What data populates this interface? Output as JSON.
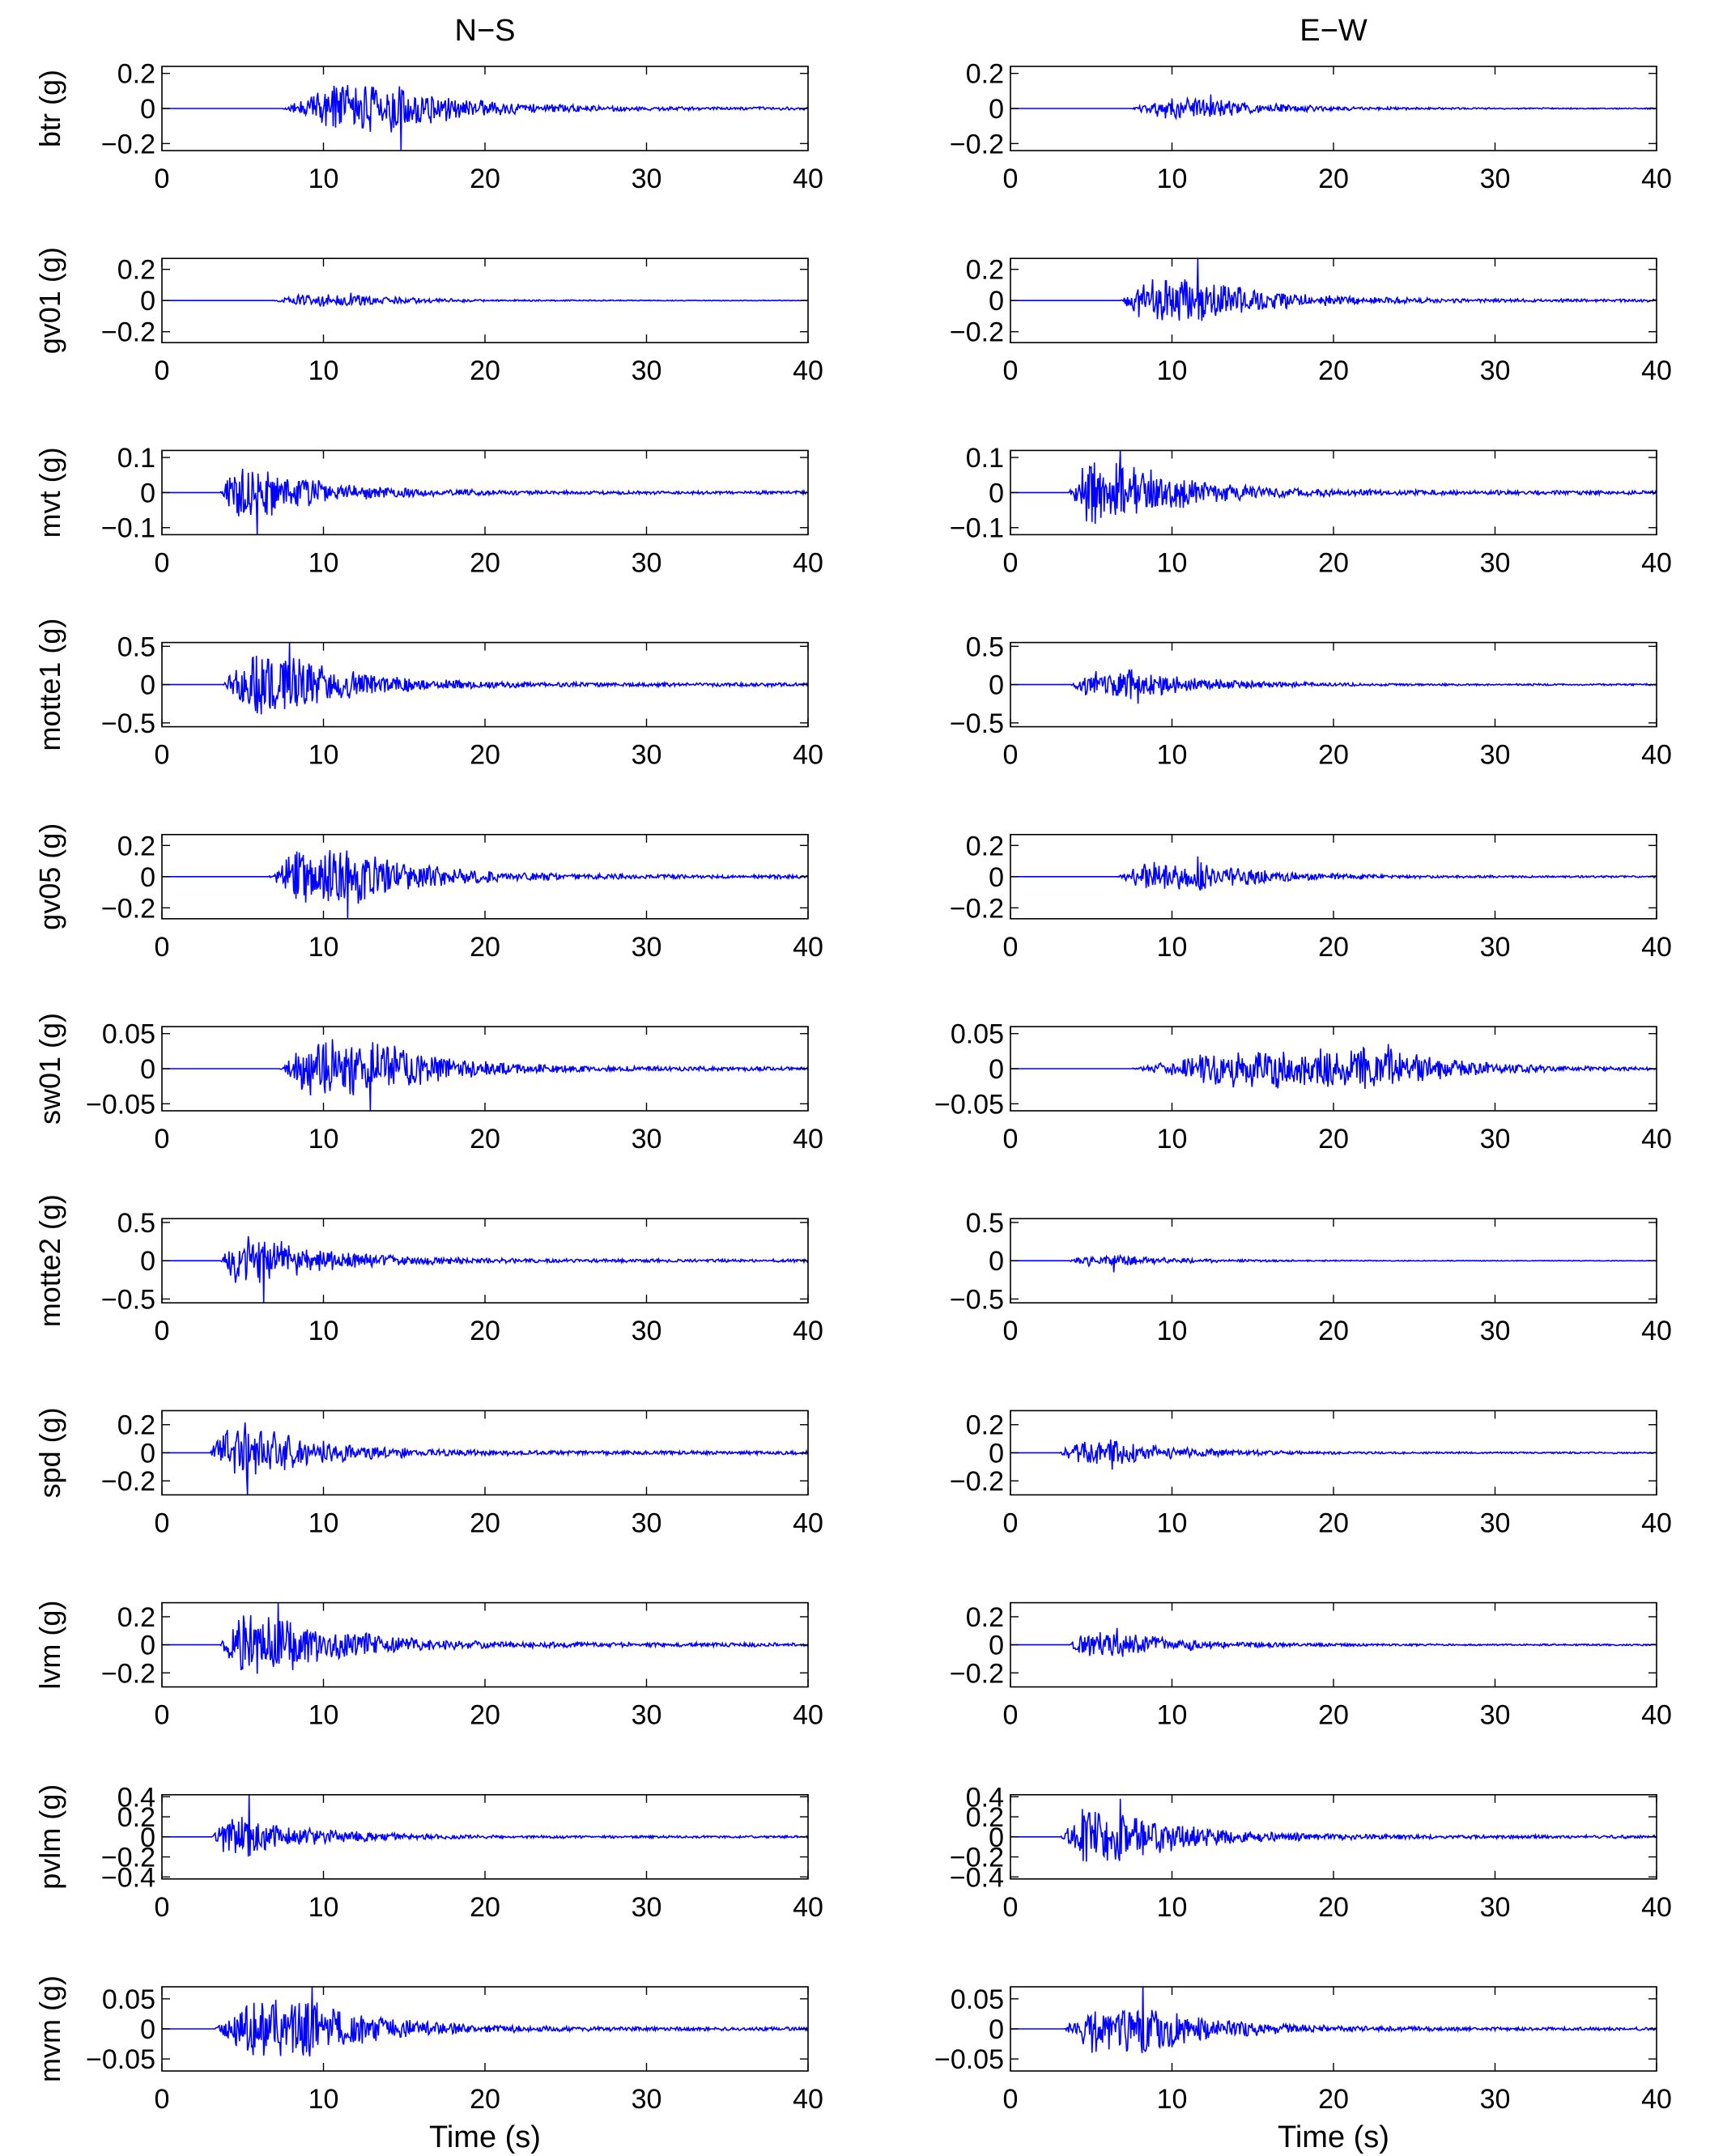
{
  "chart_data": {
    "type": "line",
    "layout": "small-multiples",
    "columns": [
      "N−S",
      "E−W"
    ],
    "xlabel": "Time (s)",
    "xlim": [
      0,
      40
    ],
    "xticks": [
      0,
      10,
      20,
      30,
      40
    ],
    "series_color": "#0000ff",
    "panels": [
      {
        "ylabel": "btr (g)",
        "ylim": [
          -0.24,
          0.24
        ],
        "yticks": [
          -0.2,
          0,
          0.2
        ],
        "ytick_labels": [
          "−0.2",
          "0",
          "0.2"
        ],
        "traces": [
          {
            "column": "N−S",
            "onset": 7.5,
            "peak_time": 14.8,
            "peak_value": -0.24,
            "envelope_max": 0.14
          },
          {
            "column": "E−W",
            "onset": 7.5,
            "peak_time": 12.4,
            "peak_value": 0.08,
            "envelope_max": 0.06
          }
        ]
      },
      {
        "ylabel": "gv01 (g)",
        "ylim": [
          -0.27,
          0.27
        ],
        "yticks": [
          -0.2,
          0,
          0.2
        ],
        "ytick_labels": [
          "−0.2",
          "0",
          "0.2"
        ],
        "traces": [
          {
            "column": "N−S",
            "onset": 6.8,
            "peak_time": 11.7,
            "peak_value": 0.05,
            "envelope_max": 0.04
          },
          {
            "column": "E−W",
            "onset": 6.8,
            "peak_time": 11.6,
            "peak_value": 0.27,
            "envelope_max": 0.16
          }
        ]
      },
      {
        "ylabel": "mvt (g)",
        "ylim": [
          -0.12,
          0.12
        ],
        "yticks": [
          -0.1,
          0,
          0.1
        ],
        "ytick_labels": [
          "−0.1",
          "0",
          "0.1"
        ],
        "traces": [
          {
            "column": "N−S",
            "onset": 3.6,
            "peak_time": 5.9,
            "peak_value": -0.12,
            "envelope_max": 0.08
          },
          {
            "column": "E−W",
            "onset": 3.6,
            "peak_time": 6.8,
            "peak_value": 0.12,
            "envelope_max": 0.1
          }
        ]
      },
      {
        "ylabel": "motte1 (g)",
        "ylim": [
          -0.55,
          0.55
        ],
        "yticks": [
          -0.5,
          0,
          0.5
        ],
        "ytick_labels": [
          "−0.5",
          "0",
          "0.5"
        ],
        "traces": [
          {
            "column": "N−S",
            "onset": 3.7,
            "peak_time": 7.9,
            "peak_value": 0.55,
            "envelope_max": 0.4
          },
          {
            "column": "E−W",
            "onset": 3.7,
            "peak_time": 7.9,
            "peak_value": -0.25,
            "envelope_max": 0.2
          }
        ]
      },
      {
        "ylabel": "gv05 (g)",
        "ylim": [
          -0.27,
          0.27
        ],
        "yticks": [
          -0.2,
          0,
          0.2
        ],
        "ytick_labels": [
          "−0.2",
          "0",
          "0.2"
        ],
        "traces": [
          {
            "column": "N−S",
            "onset": 6.6,
            "peak_time": 11.5,
            "peak_value": -0.27,
            "envelope_max": 0.2
          },
          {
            "column": "E−W",
            "onset": 6.6,
            "peak_time": 11.6,
            "peak_value": 0.13,
            "envelope_max": 0.1
          }
        ]
      },
      {
        "ylabel": "sw01 (g)",
        "ylim": [
          -0.06,
          0.06
        ],
        "yticks": [
          -0.05,
          0,
          0.05
        ],
        "ytick_labels": [
          "−0.05",
          "0",
          "0.05"
        ],
        "traces": [
          {
            "column": "N−S",
            "onset": 7.3,
            "peak_time": 12.9,
            "peak_value": -0.06,
            "envelope_max": 0.045
          },
          {
            "column": "E−W",
            "onset": 7.5,
            "peak_time": 23.4,
            "peak_value": 0.035,
            "envelope_max": 0.03
          }
        ]
      },
      {
        "ylabel": "motte2 (g)",
        "ylim": [
          -0.55,
          0.55
        ],
        "yticks": [
          -0.5,
          0,
          0.5
        ],
        "ytick_labels": [
          "−0.5",
          "0",
          "0.5"
        ],
        "traces": [
          {
            "column": "N−S",
            "onset": 3.6,
            "peak_time": 6.3,
            "peak_value": -0.55,
            "envelope_max": 0.33
          },
          {
            "column": "E−W",
            "onset": 3.6,
            "peak_time": 6.4,
            "peak_value": -0.15,
            "envelope_max": 0.08
          }
        ]
      },
      {
        "ylabel": "spd (g)",
        "ylim": [
          -0.3,
          0.3
        ],
        "yticks": [
          -0.2,
          0,
          0.2
        ],
        "ytick_labels": [
          "−0.2",
          "0",
          "0.2"
        ],
        "traces": [
          {
            "column": "N−S",
            "onset": 3.0,
            "peak_time": 5.3,
            "peak_value": -0.3,
            "envelope_max": 0.22
          },
          {
            "column": "E−W",
            "onset": 3.0,
            "peak_time": 6.3,
            "peak_value": -0.12,
            "envelope_max": 0.1
          }
        ]
      },
      {
        "ylabel": "lvm (g)",
        "ylim": [
          -0.3,
          0.3
        ],
        "yticks": [
          -0.2,
          0,
          0.2
        ],
        "ytick_labels": [
          "−0.2",
          "0",
          "0.2"
        ],
        "traces": [
          {
            "column": "N−S",
            "onset": 3.6,
            "peak_time": 7.2,
            "peak_value": 0.3,
            "envelope_max": 0.25
          },
          {
            "column": "E−W",
            "onset": 3.6,
            "peak_time": 6.6,
            "peak_value": 0.12,
            "envelope_max": 0.1
          }
        ]
      },
      {
        "ylabel": "pvlm (g)",
        "ylim": [
          -0.42,
          0.42
        ],
        "yticks": [
          -0.4,
          -0.2,
          0,
          0.2,
          0.4
        ],
        "ytick_labels": [
          "−0.4",
          "−0.2",
          "0",
          "0.2",
          "0.4"
        ],
        "traces": [
          {
            "column": "N−S",
            "onset": 3.1,
            "peak_time": 5.4,
            "peak_value": 0.42,
            "envelope_max": 0.2
          },
          {
            "column": "E−W",
            "onset": 3.1,
            "peak_time": 6.8,
            "peak_value": 0.38,
            "envelope_max": 0.28
          }
        ]
      },
      {
        "ylabel": "mvm (g)",
        "ylim": [
          -0.07,
          0.07
        ],
        "yticks": [
          -0.05,
          0,
          0.05
        ],
        "ytick_labels": [
          "−0.05",
          "0",
          "0.05"
        ],
        "traces": [
          {
            "column": "N−S",
            "onset": 3.3,
            "peak_time": 9.3,
            "peak_value": 0.07,
            "envelope_max": 0.05
          },
          {
            "column": "E−W",
            "onset": 3.3,
            "peak_time": 8.2,
            "peak_value": 0.075,
            "envelope_max": 0.045
          }
        ]
      }
    ]
  }
}
